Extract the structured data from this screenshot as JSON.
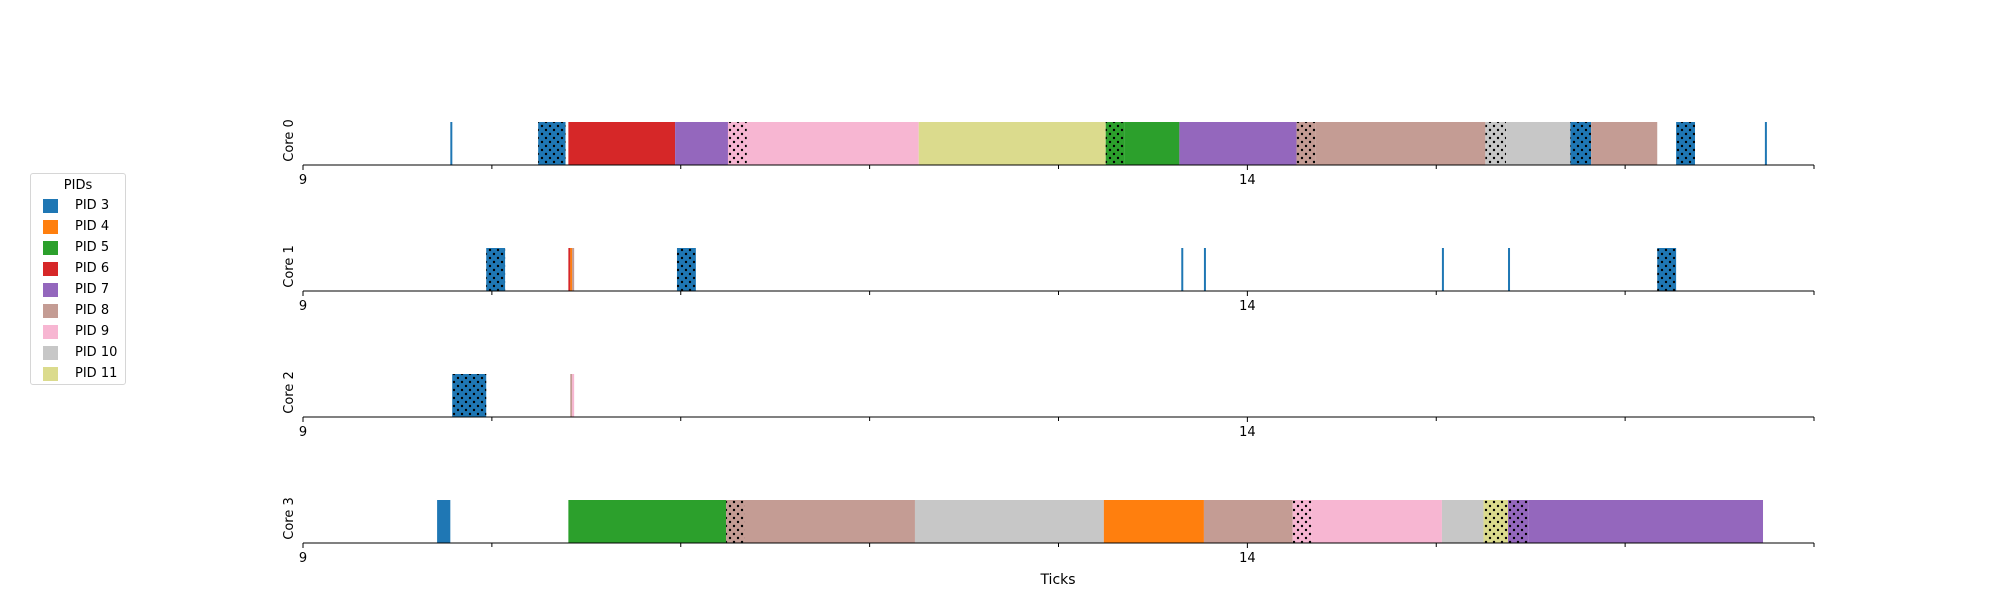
{
  "chart_data": {
    "type": "gantt",
    "xlabel": "Ticks",
    "xlim": [
      9,
      17
    ],
    "xticks": [
      {
        "value": 9,
        "label": "9"
      },
      {
        "value": 14,
        "label": "14"
      }
    ],
    "minor_ticks": [
      10,
      11,
      12,
      13,
      15,
      16,
      17
    ],
    "legend": {
      "title": "PIDs",
      "placement": "left",
      "entries": [
        {
          "pid": 3,
          "label": "PID 3",
          "color": "#1f77b4"
        },
        {
          "pid": 4,
          "label": "PID 4",
          "color": "#ff7f0e"
        },
        {
          "pid": 5,
          "label": "PID 5",
          "color": "#2ca02c"
        },
        {
          "pid": 6,
          "label": "PID 6",
          "color": "#d62728"
        },
        {
          "pid": 7,
          "label": "PID 7",
          "color": "#9467bd"
        },
        {
          "pid": 8,
          "label": "PID 8",
          "color": "#c49c94"
        },
        {
          "pid": 9,
          "label": "PID 9",
          "color": "#f7b6d2"
        },
        {
          "pid": 10,
          "label": "PID 10",
          "color": "#c7c7c7"
        },
        {
          "pid": 11,
          "label": "PID 11",
          "color": "#dbdb8d"
        }
      ]
    },
    "cores": [
      {
        "label": "Core 0",
        "segments": [
          {
            "pid": 3,
            "start": 9.78,
            "end": 9.79,
            "hatched": false
          },
          {
            "pid": 3,
            "start": 10.245,
            "end": 10.39,
            "hatched": true
          },
          {
            "pid": 6,
            "start": 10.405,
            "end": 10.97,
            "hatched": false
          },
          {
            "pid": 7,
            "start": 10.97,
            "end": 11.25,
            "hatched": false
          },
          {
            "pid": 9,
            "start": 11.25,
            "end": 11.35,
            "hatched": true
          },
          {
            "pid": 9,
            "start": 11.35,
            "end": 12.26,
            "hatched": false
          },
          {
            "pid": 11,
            "start": 12.26,
            "end": 13.25,
            "hatched": false
          },
          {
            "pid": 5,
            "start": 13.25,
            "end": 13.35,
            "hatched": true
          },
          {
            "pid": 5,
            "start": 13.35,
            "end": 13.64,
            "hatched": false
          },
          {
            "pid": 7,
            "start": 13.64,
            "end": 14.26,
            "hatched": false
          },
          {
            "pid": 8,
            "start": 14.26,
            "end": 14.36,
            "hatched": true
          },
          {
            "pid": 8,
            "start": 14.36,
            "end": 15.26,
            "hatched": false
          },
          {
            "pid": 10,
            "start": 15.26,
            "end": 15.37,
            "hatched": true
          },
          {
            "pid": 10,
            "start": 15.37,
            "end": 15.71,
            "hatched": false
          },
          {
            "pid": 3,
            "start": 15.71,
            "end": 15.82,
            "hatched": true
          },
          {
            "pid": 8,
            "start": 15.82,
            "end": 16.17,
            "hatched": false
          },
          {
            "pid": 3,
            "start": 16.27,
            "end": 16.37,
            "hatched": true
          },
          {
            "pid": 3,
            "start": 16.74,
            "end": 16.75,
            "hatched": false
          }
        ]
      },
      {
        "label": "Core 1",
        "segments": [
          {
            "pid": 3,
            "start": 9.97,
            "end": 10.07,
            "hatched": true
          },
          {
            "pid": 6,
            "start": 10.405,
            "end": 10.415,
            "hatched": false
          },
          {
            "pid": 4,
            "start": 10.415,
            "end": 10.425,
            "hatched": false
          },
          {
            "pid": 8,
            "start": 10.425,
            "end": 10.435,
            "hatched": false
          },
          {
            "pid": 3,
            "start": 10.98,
            "end": 11.08,
            "hatched": true
          },
          {
            "pid": 3,
            "start": 13.65,
            "end": 13.66,
            "hatched": false
          },
          {
            "pid": 3,
            "start": 13.77,
            "end": 13.78,
            "hatched": false
          },
          {
            "pid": 3,
            "start": 15.03,
            "end": 15.04,
            "hatched": false
          },
          {
            "pid": 3,
            "start": 15.38,
            "end": 15.39,
            "hatched": false
          },
          {
            "pid": 3,
            "start": 16.17,
            "end": 16.27,
            "hatched": true
          }
        ]
      },
      {
        "label": "Core 2",
        "segments": [
          {
            "pid": 3,
            "start": 9.79,
            "end": 9.97,
            "hatched": true
          },
          {
            "pid": 8,
            "start": 10.415,
            "end": 10.425,
            "hatched": false
          },
          {
            "pid": 9,
            "start": 10.425,
            "end": 10.435,
            "hatched": false
          }
        ]
      },
      {
        "label": "Core 3",
        "segments": [
          {
            "pid": 3,
            "start": 9.71,
            "end": 9.78,
            "hatched": false
          },
          {
            "pid": 5,
            "start": 10.405,
            "end": 11.24,
            "hatched": false
          },
          {
            "pid": 8,
            "start": 11.24,
            "end": 11.34,
            "hatched": true
          },
          {
            "pid": 8,
            "start": 11.34,
            "end": 12.24,
            "hatched": false
          },
          {
            "pid": 10,
            "start": 12.24,
            "end": 13.24,
            "hatched": false
          },
          {
            "pid": 4,
            "start": 13.24,
            "end": 13.77,
            "hatched": false
          },
          {
            "pid": 8,
            "start": 13.77,
            "end": 14.24,
            "hatched": false
          },
          {
            "pid": 9,
            "start": 14.24,
            "end": 14.34,
            "hatched": true
          },
          {
            "pid": 9,
            "start": 14.34,
            "end": 15.03,
            "hatched": false
          },
          {
            "pid": 10,
            "start": 15.03,
            "end": 15.25,
            "hatched": false
          },
          {
            "pid": 11,
            "start": 15.25,
            "end": 15.38,
            "hatched": true
          },
          {
            "pid": 7,
            "start": 15.38,
            "end": 15.49,
            "hatched": true
          },
          {
            "pid": 7,
            "start": 15.49,
            "end": 16.73,
            "hatched": false
          }
        ]
      }
    ]
  }
}
